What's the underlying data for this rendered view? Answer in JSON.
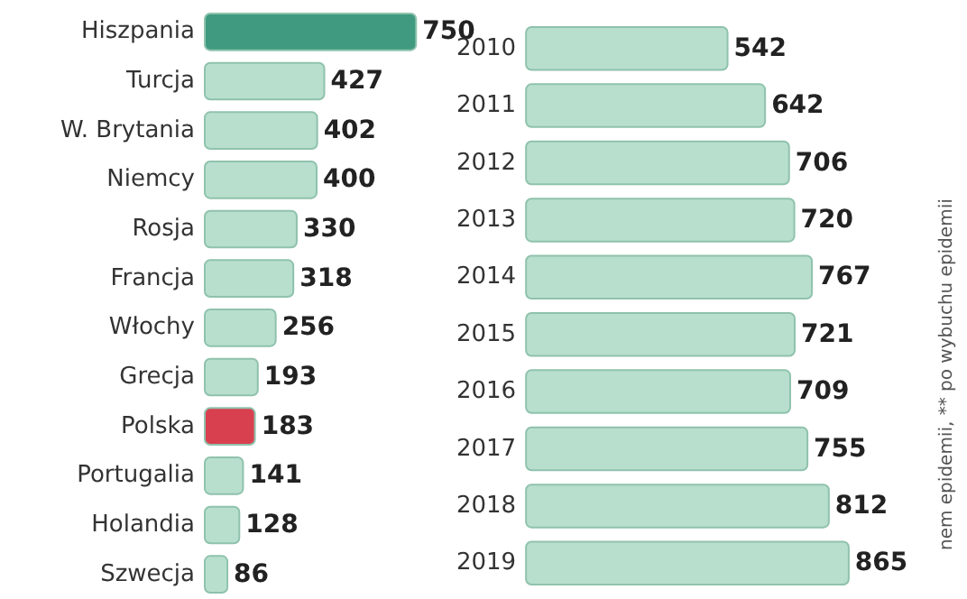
{
  "chart_data": [
    {
      "type": "bar",
      "orientation": "horizontal",
      "tick_labels": "y",
      "data_labels": true,
      "categories": [
        "Hiszpania",
        "Turcja",
        "W. Brytania",
        "Niemcy",
        "Rosja",
        "Francja",
        "Włochy",
        "Grecja",
        "Polska",
        "Portugalia",
        "Holandia",
        "Szwecja"
      ],
      "values": [
        750,
        427,
        402,
        400,
        330,
        318,
        256,
        193,
        183,
        141,
        128,
        86
      ],
      "colors": [
        "#3f9a80",
        "#b8dfcd",
        "#b8dfcd",
        "#b8dfcd",
        "#b8dfcd",
        "#b8dfcd",
        "#b8dfcd",
        "#b8dfcd",
        "#d9404f",
        "#b8dfcd",
        "#b8dfcd",
        "#b8dfcd"
      ]
    },
    {
      "type": "bar",
      "orientation": "horizontal",
      "tick_labels": "y",
      "data_labels": true,
      "categories": [
        "2010",
        "2011",
        "2012",
        "2013",
        "2014",
        "2015",
        "2016",
        "2017",
        "2018",
        "2019"
      ],
      "values": [
        542,
        642,
        706,
        720,
        767,
        721,
        709,
        755,
        812,
        865
      ],
      "color": "#b8dfcd",
      "annotations": [
        "nem epidemii, ** po wybuchu epidemii"
      ]
    }
  ]
}
